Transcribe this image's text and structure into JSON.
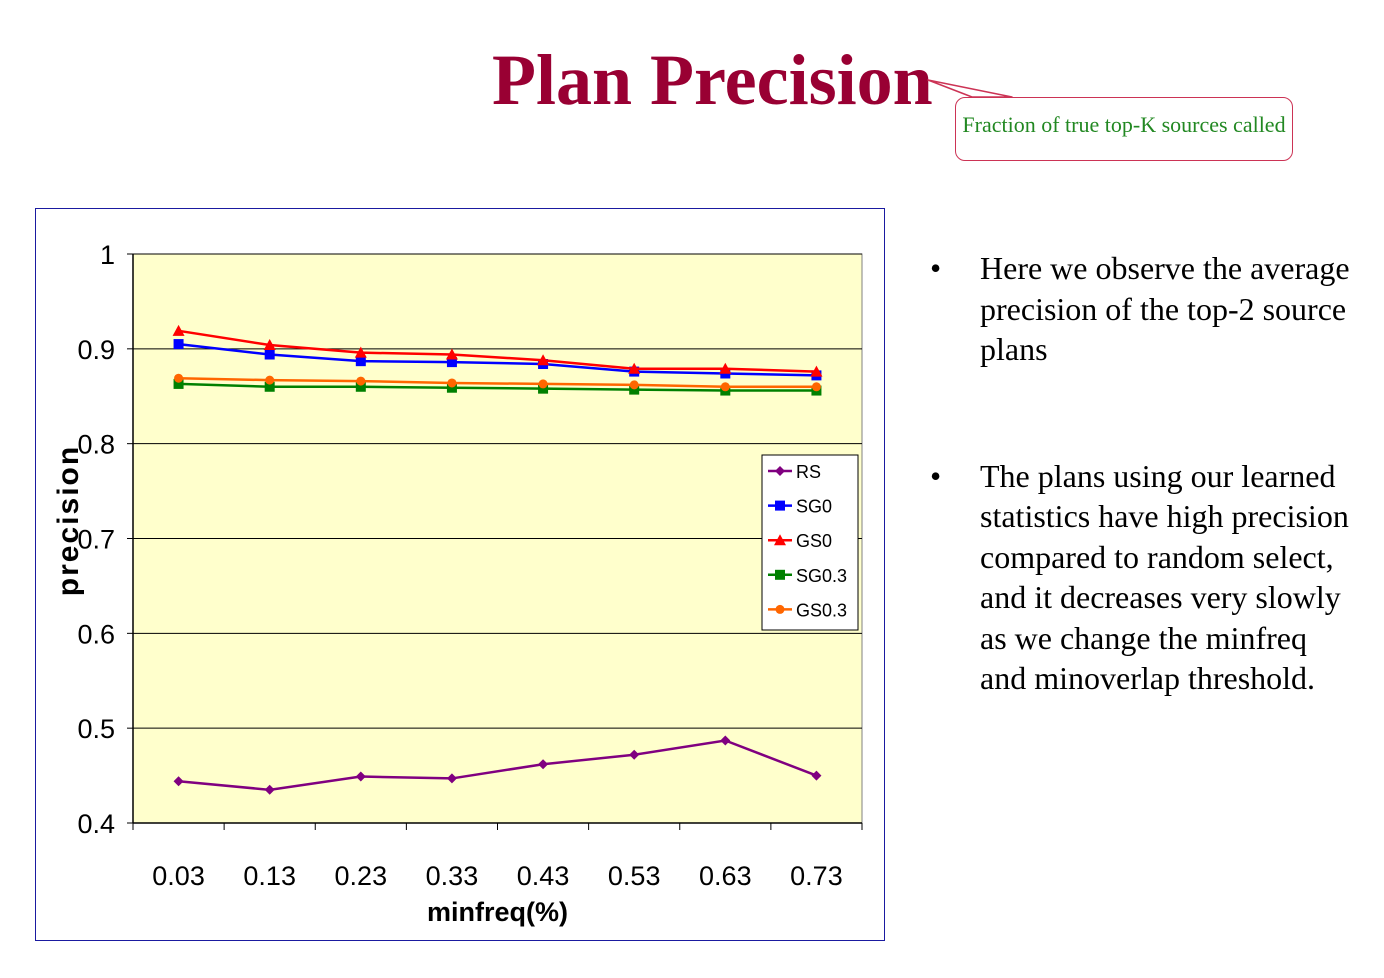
{
  "slide": {
    "title": "Plan Precision",
    "callout": "Fraction of true top-K sources called",
    "bullets": [
      {
        "marker": "•",
        "text": "Here we observe the average precision of the top-2 source plans"
      },
      {
        "marker": "•",
        "text": "The plans using our learned statistics have high precision compared to random select, and it decreases very slowly as we change the minfreq and minoverlap threshold."
      }
    ]
  },
  "colors": {
    "title": "#990033",
    "callout_border": "#cc3355",
    "callout_text": "#228822",
    "plot_background": "#ffffcc",
    "chart_border": "#1a1aa0"
  },
  "chart_data": {
    "type": "line",
    "title": "",
    "xlabel": "minfreq(%)",
    "ylabel": "precision",
    "categories": [
      "0.03",
      "0.13",
      "0.23",
      "0.33",
      "0.43",
      "0.53",
      "0.63",
      "0.73"
    ],
    "ylim": [
      0.4,
      1.0
    ],
    "yticks": [
      "0.4",
      "0.5",
      "0.6",
      "0.7",
      "0.8",
      "0.9",
      "1"
    ],
    "grid": true,
    "legend": "right",
    "series": [
      {
        "name": "RS",
        "color": "#800080",
        "marker": "diamond",
        "values": [
          0.444,
          0.435,
          0.449,
          0.447,
          0.462,
          0.472,
          0.487,
          0.45
        ]
      },
      {
        "name": "SG0",
        "color": "#0000ff",
        "marker": "square",
        "values": [
          0.905,
          0.894,
          0.887,
          0.886,
          0.884,
          0.876,
          0.874,
          0.872
        ]
      },
      {
        "name": "GS0",
        "color": "#ff0000",
        "marker": "triangle",
        "values": [
          0.919,
          0.904,
          0.896,
          0.894,
          0.888,
          0.879,
          0.879,
          0.876
        ]
      },
      {
        "name": "SG0.3",
        "color": "#008000",
        "marker": "square",
        "values": [
          0.863,
          0.86,
          0.86,
          0.859,
          0.858,
          0.857,
          0.856,
          0.856
        ]
      },
      {
        "name": "GS0.3",
        "color": "#ff6600",
        "marker": "circle",
        "values": [
          0.869,
          0.867,
          0.866,
          0.864,
          0.863,
          0.862,
          0.86,
          0.86
        ]
      }
    ]
  }
}
